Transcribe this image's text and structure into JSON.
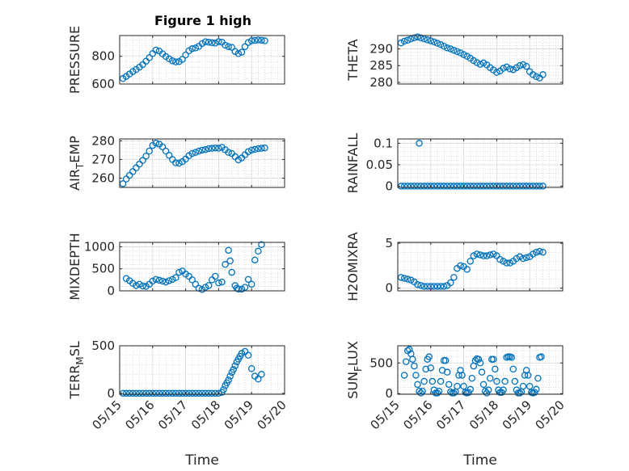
{
  "figure_title": "Figure 1 high",
  "marker_color": "#0072bd",
  "chart_data": [
    {
      "type": "scatter",
      "key": "pressure",
      "title": "Figure 1 high",
      "ylabel": "PRESSURE",
      "ylabel_sub": "",
      "ylabel_tail": "",
      "xlabel": "",
      "ylim": [
        600,
        950
      ],
      "yticks": [
        "600",
        "800"
      ],
      "ytick_values": [
        600,
        800
      ],
      "xlim": [
        0,
        5
      ],
      "grid": true,
      "x": [
        0.1,
        0.2,
        0.3,
        0.4,
        0.5,
        0.6,
        0.7,
        0.8,
        0.9,
        1.0,
        1.1,
        1.2,
        1.3,
        1.4,
        1.5,
        1.6,
        1.7,
        1.8,
        1.9,
        2.0,
        2.1,
        2.2,
        2.3,
        2.4,
        2.5,
        2.6,
        2.7,
        2.8,
        2.9,
        3.0,
        3.1,
        3.2,
        3.3,
        3.4,
        3.5,
        3.6,
        3.7,
        3.8,
        3.9,
        4.0,
        4.1,
        4.2,
        4.3,
        4.4
      ],
      "y": [
        640,
        655,
        672,
        690,
        705,
        722,
        740,
        765,
        790,
        820,
        845,
        838,
        818,
        798,
        782,
        768,
        760,
        762,
        778,
        810,
        840,
        855,
        860,
        872,
        892,
        905,
        902,
        898,
        895,
        906,
        902,
        880,
        870,
        865,
        835,
        820,
        830,
        870,
        900,
        912,
        915,
        918,
        916,
        912
      ]
    },
    {
      "type": "scatter",
      "key": "theta",
      "title": "",
      "ylabel": "THETA",
      "ylabel_sub": "",
      "ylabel_tail": "",
      "xlabel": "",
      "ylim": [
        279.5,
        294
      ],
      "yticks": [
        "280",
        "285",
        "290"
      ],
      "ytick_values": [
        280,
        285,
        290
      ],
      "xlim": [
        0,
        5
      ],
      "grid": true,
      "x": [
        0.1,
        0.2,
        0.3,
        0.4,
        0.5,
        0.6,
        0.7,
        0.8,
        0.9,
        1.0,
        1.1,
        1.2,
        1.3,
        1.4,
        1.5,
        1.6,
        1.7,
        1.8,
        1.9,
        2.0,
        2.1,
        2.2,
        2.3,
        2.4,
        2.5,
        2.6,
        2.7,
        2.8,
        2.9,
        3.0,
        3.1,
        3.2,
        3.3,
        3.4,
        3.5,
        3.6,
        3.7,
        3.8,
        3.9,
        4.0,
        4.1,
        4.2,
        4.3,
        4.4
      ],
      "y": [
        291.8,
        292.3,
        292.6,
        293.0,
        293.3,
        293.6,
        293.3,
        293.0,
        292.7,
        292.4,
        292.1,
        291.7,
        291.3,
        290.8,
        290.3,
        290.0,
        289.6,
        289.2,
        288.8,
        288.3,
        287.8,
        287.2,
        286.5,
        285.9,
        285.4,
        285.8,
        285.2,
        284.4,
        283.7,
        283.0,
        283.4,
        284.2,
        284.6,
        284.0,
        283.8,
        284.4,
        285.0,
        285.3,
        284.8,
        283.2,
        282.3,
        281.7,
        281.3,
        282.3
      ]
    },
    {
      "type": "scatter",
      "key": "air_temp",
      "title": "",
      "ylabel": "AIR",
      "ylabel_sub": "T",
      "ylabel_tail": "EMP",
      "xlabel": "",
      "ylim": [
        255,
        281
      ],
      "yticks": [
        "260",
        "270",
        "280"
      ],
      "ytick_values": [
        260,
        270,
        280
      ],
      "xlim": [
        0,
        5
      ],
      "grid": true,
      "x": [
        0.1,
        0.2,
        0.3,
        0.4,
        0.5,
        0.6,
        0.7,
        0.8,
        0.9,
        1.0,
        1.1,
        1.2,
        1.3,
        1.4,
        1.5,
        1.6,
        1.7,
        1.8,
        1.9,
        2.0,
        2.1,
        2.2,
        2.3,
        2.4,
        2.5,
        2.6,
        2.7,
        2.8,
        2.9,
        3.0,
        3.1,
        3.2,
        3.3,
        3.4,
        3.5,
        3.6,
        3.7,
        3.8,
        3.9,
        4.0,
        4.1,
        4.2,
        4.3,
        4.4
      ],
      "y": [
        257.0,
        259.5,
        261.5,
        263.5,
        265.5,
        267.5,
        269.5,
        271.8,
        274.5,
        277.5,
        278.8,
        278.2,
        276.8,
        274.5,
        272.2,
        270.0,
        268.2,
        268.0,
        268.8,
        270.2,
        272.0,
        273.2,
        273.8,
        274.5,
        275.0,
        275.3,
        275.8,
        276.0,
        276.2,
        276.0,
        276.5,
        275.2,
        273.8,
        273.2,
        271.5,
        269.8,
        270.8,
        272.5,
        274.2,
        275.0,
        275.4,
        275.8,
        276.0,
        276.2
      ]
    },
    {
      "type": "scatter",
      "key": "rainfall",
      "title": "",
      "ylabel": "RAINFALL",
      "ylabel_sub": "",
      "ylabel_tail": "",
      "xlabel": "",
      "ylim": [
        -0.003,
        0.11
      ],
      "yticks": [
        "0",
        "0.05",
        "0.1"
      ],
      "ytick_values": [
        0,
        0.05,
        0.1
      ],
      "xlim": [
        0,
        5
      ],
      "grid": true,
      "x": [
        0.1,
        0.2,
        0.3,
        0.4,
        0.5,
        0.6,
        0.7,
        0.8,
        0.9,
        1.0,
        1.1,
        1.2,
        1.3,
        1.4,
        1.5,
        1.6,
        1.7,
        1.8,
        1.9,
        2.0,
        2.1,
        2.2,
        2.3,
        2.4,
        2.5,
        2.6,
        2.7,
        2.8,
        2.9,
        3.0,
        3.1,
        3.2,
        3.3,
        3.4,
        3.5,
        3.6,
        3.7,
        3.8,
        3.9,
        4.0,
        4.1,
        4.2,
        4.3,
        4.4,
        0.65
      ],
      "y": [
        0,
        0,
        0,
        0,
        0,
        0,
        0,
        0,
        0,
        0,
        0,
        0,
        0,
        0,
        0,
        0,
        0,
        0,
        0,
        0,
        0,
        0,
        0,
        0,
        0,
        0,
        0,
        0,
        0,
        0,
        0,
        0,
        0,
        0,
        0,
        0,
        0,
        0,
        0,
        0,
        0,
        0,
        0,
        0,
        0.1
      ]
    },
    {
      "type": "scatter",
      "key": "mixdepth",
      "title": "",
      "ylabel": "MIXDEPTH",
      "ylabel_sub": "",
      "ylabel_tail": "",
      "xlabel": "",
      "ylim": [
        0,
        1100
      ],
      "yticks": [
        "0",
        "500",
        "1000"
      ],
      "ytick_values": [
        0,
        500,
        1000
      ],
      "xlim": [
        0,
        5
      ],
      "grid": true,
      "x": [
        0.2,
        0.3,
        0.4,
        0.5,
        0.6,
        0.7,
        0.8,
        0.9,
        1.0,
        1.1,
        1.2,
        1.3,
        1.4,
        1.5,
        1.6,
        1.7,
        1.8,
        1.9,
        2.0,
        2.1,
        2.2,
        2.3,
        2.4,
        2.5,
        2.6,
        2.7,
        2.8,
        2.9,
        3.0,
        3.1,
        3.2,
        3.3,
        3.35,
        3.4,
        3.5,
        3.55,
        3.6,
        3.7,
        3.8,
        3.9,
        4.0,
        4.1,
        4.2,
        4.3
      ],
      "y": [
        280,
        230,
        170,
        120,
        150,
        110,
        100,
        150,
        220,
        260,
        240,
        220,
        200,
        230,
        260,
        300,
        420,
        450,
        380,
        330,
        250,
        150,
        60,
        30,
        80,
        120,
        250,
        330,
        180,
        200,
        600,
        920,
        680,
        420,
        120,
        60,
        40,
        40,
        80,
        260,
        150,
        700,
        900,
        1050
      ]
    },
    {
      "type": "scatter",
      "key": "h2omixra",
      "title": "",
      "ylabel": "H2OMIXRA",
      "ylabel_sub": "",
      "ylabel_tail": "",
      "xlabel": "",
      "ylim": [
        -0.3,
        5.1
      ],
      "yticks": [
        "0",
        "5"
      ],
      "ytick_values": [
        0,
        5
      ],
      "xlim": [
        0,
        5
      ],
      "grid": true,
      "x": [
        0.1,
        0.2,
        0.3,
        0.4,
        0.5,
        0.6,
        0.7,
        0.8,
        0.9,
        1.0,
        1.1,
        1.2,
        1.3,
        1.4,
        1.5,
        1.6,
        1.7,
        1.8,
        1.9,
        2.0,
        2.1,
        2.2,
        2.3,
        2.4,
        2.5,
        2.6,
        2.7,
        2.8,
        2.9,
        3.0,
        3.1,
        3.2,
        3.3,
        3.4,
        3.5,
        3.6,
        3.7,
        3.8,
        3.9,
        4.0,
        4.1,
        4.2,
        4.3,
        4.4
      ],
      "y": [
        1.2,
        1.1,
        1.0,
        0.9,
        0.7,
        0.4,
        0.3,
        0.2,
        0.2,
        0.2,
        0.2,
        0.2,
        0.2,
        0.2,
        0.3,
        0.6,
        1.2,
        2.2,
        2.5,
        2.4,
        2.1,
        3.0,
        3.6,
        3.8,
        3.7,
        3.6,
        3.6,
        3.7,
        3.8,
        3.6,
        3.2,
        3.0,
        2.8,
        2.8,
        3.0,
        3.3,
        3.5,
        3.3,
        3.4,
        3.5,
        3.8,
        4.0,
        4.1,
        4.0
      ]
    },
    {
      "type": "scatter",
      "key": "terr_msl",
      "title": "",
      "ylabel": "TERR",
      "ylabel_sub": "M",
      "ylabel_tail": "SL",
      "xlabel": "Time",
      "ylim": [
        -10,
        500
      ],
      "yticks": [
        "0",
        "500"
      ],
      "ytick_values": [
        0,
        500
      ],
      "xlim": [
        0,
        5
      ],
      "grid": true,
      "x": [
        0.1,
        0.2,
        0.3,
        0.4,
        0.5,
        0.6,
        0.7,
        0.8,
        0.9,
        1.0,
        1.1,
        1.2,
        1.3,
        1.4,
        1.5,
        1.6,
        1.7,
        1.8,
        1.9,
        2.0,
        2.1,
        2.2,
        2.3,
        2.4,
        2.5,
        2.6,
        2.7,
        2.8,
        2.9,
        3.0,
        3.1,
        3.15,
        3.2,
        3.25,
        3.3,
        3.35,
        3.4,
        3.45,
        3.5,
        3.55,
        3.6,
        3.65,
        3.7,
        3.8,
        3.9,
        4.0,
        4.1,
        4.2,
        4.3
      ],
      "y": [
        0,
        0,
        0,
        0,
        0,
        0,
        0,
        0,
        0,
        0,
        0,
        0,
        0,
        0,
        0,
        0,
        0,
        0,
        0,
        0,
        0,
        0,
        0,
        0,
        0,
        0,
        0,
        0,
        0,
        0,
        10,
        40,
        80,
        110,
        140,
        180,
        220,
        250,
        290,
        330,
        360,
        390,
        420,
        440,
        400,
        260,
        180,
        150,
        200
      ]
    },
    {
      "type": "scatter",
      "key": "sun_flux",
      "title": "",
      "ylabel": "SUN",
      "ylabel_sub": "F",
      "ylabel_tail": "LUX",
      "xlabel": "Time",
      "ylim": [
        -10,
        780
      ],
      "yticks": [
        "0",
        "500"
      ],
      "ytick_values": [
        0,
        500
      ],
      "xlim": [
        0,
        5
      ],
      "grid": true,
      "x": [
        0.2,
        0.25,
        0.3,
        0.35,
        0.4,
        0.45,
        0.5,
        0.55,
        0.6,
        0.65,
        0.7,
        0.75,
        0.8,
        0.85,
        0.9,
        0.95,
        1.0,
        1.05,
        1.1,
        1.15,
        1.2,
        1.25,
        1.3,
        1.35,
        1.4,
        1.45,
        1.5,
        1.55,
        1.6,
        1.65,
        1.7,
        1.75,
        1.8,
        1.85,
        1.9,
        1.95,
        2.0,
        2.05,
        2.1,
        2.15,
        2.2,
        2.25,
        2.3,
        2.35,
        2.4,
        2.45,
        2.5,
        2.55,
        2.6,
        2.65,
        2.7,
        2.75,
        2.8,
        2.85,
        2.9,
        2.95,
        3.0,
        3.05,
        3.1,
        3.15,
        3.2,
        3.25,
        3.3,
        3.35,
        3.4,
        3.45,
        3.5,
        3.55,
        3.6,
        3.65,
        3.7,
        3.75,
        3.8,
        3.85,
        3.9,
        3.95,
        4.0,
        4.05,
        4.1,
        4.15,
        4.2,
        4.25,
        4.3,
        4.35
      ],
      "y": [
        300,
        520,
        700,
        720,
        650,
        560,
        450,
        300,
        150,
        40,
        10,
        40,
        200,
        400,
        560,
        600,
        420,
        200,
        60,
        10,
        10,
        40,
        200,
        380,
        540,
        540,
        350,
        150,
        30,
        10,
        10,
        30,
        120,
        300,
        380,
        300,
        120,
        20,
        10,
        20,
        70,
        250,
        450,
        540,
        570,
        560,
        500,
        350,
        150,
        40,
        10,
        60,
        250,
        560,
        560,
        400,
        200,
        60,
        20,
        20,
        60,
        200,
        590,
        600,
        600,
        590,
        400,
        200,
        60,
        10,
        10,
        30,
        120,
        300,
        380,
        300,
        120,
        20,
        10,
        20,
        70,
        250,
        590,
        600
      ]
    }
  ],
  "x_axis": {
    "ticks": [
      "05/15",
      "05/16",
      "05/17",
      "05/18",
      "05/19",
      "05/20"
    ],
    "tick_values": [
      0,
      1,
      2,
      3,
      4,
      5
    ]
  }
}
